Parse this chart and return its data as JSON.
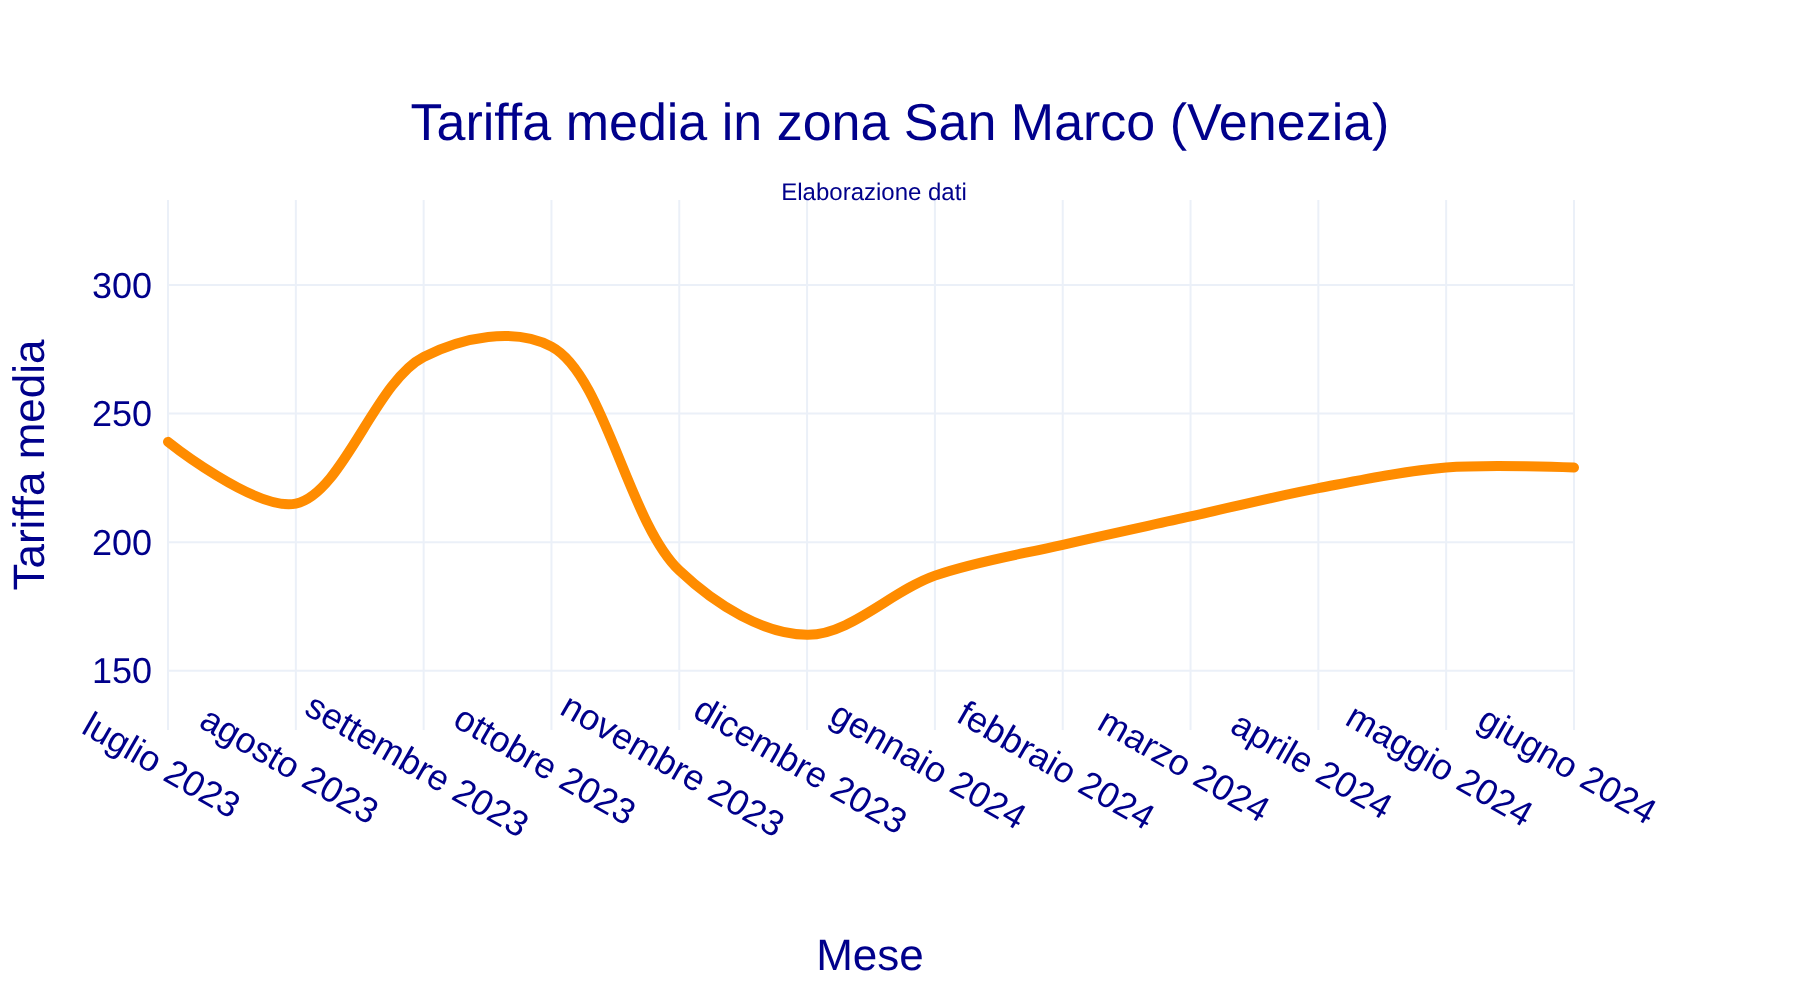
{
  "chart_data": {
    "type": "line",
    "title": "Tariffa media in zona San Marco (Venezia)",
    "subtitle": "Elaborazione dati",
    "xlabel": "Mese",
    "ylabel": "Tariffa media",
    "categories": [
      "luglio 2023",
      "agosto 2023",
      "settembre 2023",
      "ottobre 2023",
      "novembre 2023",
      "dicembre 2023",
      "gennaio 2024",
      "febbraio 2024",
      "marzo 2024",
      "aprile 2024",
      "maggio 2024",
      "giugno 2024"
    ],
    "series": [
      {
        "color": "#ff8c00",
        "values": [
          239,
          215,
          272,
          276,
          189,
          164,
          187,
          199,
          210,
          221,
          229,
          229
        ]
      }
    ],
    "ylim": [
      127,
      333
    ],
    "yticks": [
      150,
      200,
      250,
      300
    ],
    "grid": true
  }
}
